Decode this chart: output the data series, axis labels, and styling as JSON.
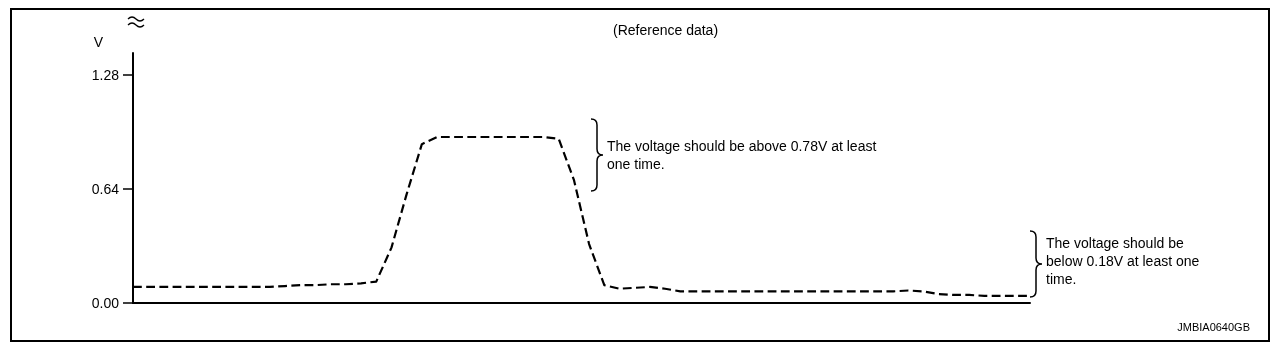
{
  "chart_data": {
    "type": "line",
    "title": "(Reference data)",
    "ylabel": "V",
    "categories": [
      null,
      null,
      null,
      null,
      null,
      null,
      null,
      null,
      null,
      null,
      null,
      null,
      null,
      null,
      null,
      null,
      null,
      null,
      null,
      null,
      null,
      null,
      null,
      null,
      null,
      null,
      null,
      null,
      null,
      null,
      null,
      null,
      null,
      null,
      null,
      null,
      null,
      null,
      null,
      null,
      null,
      null,
      null,
      null,
      null,
      null,
      null,
      null,
      null,
      null,
      null,
      null,
      null,
      null,
      null,
      null,
      null,
      null,
      null,
      null
    ],
    "series": [
      {
        "color": "#000000",
        "values": [
          0.09,
          0.09,
          0.09,
          0.09,
          0.09,
          0.09,
          0.09,
          0.09,
          0.09,
          0.09,
          0.095,
          0.1,
          0.1,
          0.105,
          0.105,
          0.11,
          0.12,
          0.31,
          0.61,
          0.89,
          0.93,
          0.93,
          0.93,
          0.93,
          0.93,
          0.93,
          0.93,
          0.93,
          0.92,
          0.69,
          0.33,
          0.1,
          0.08,
          0.085,
          0.09,
          0.08,
          0.065,
          0.065,
          0.065,
          0.065,
          0.065,
          0.065,
          0.065,
          0.065,
          0.065,
          0.065,
          0.065,
          0.065,
          0.065,
          0.065,
          0.065,
          0.07,
          0.065,
          0.05,
          0.045,
          0.045,
          0.04,
          0.04,
          0.04,
          0.04
        ]
      }
    ],
    "ylim": [
      0,
      1.4
    ],
    "yticks": [
      {
        "value": 0,
        "label": "0.00"
      },
      {
        "value": 0.64,
        "label": "0.64"
      },
      {
        "value": 1.28,
        "label": "1.28"
      }
    ],
    "marker": "none",
    "line_style": "dashed",
    "tick_labels": "y",
    "annotations": [
      "The voltage should be above 0.78V at least one time.",
      "The voltage should be below 0.18V at least one time.",
      "JMBIA0640GB"
    ]
  }
}
